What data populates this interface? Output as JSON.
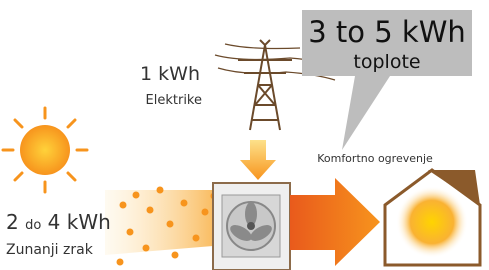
{
  "electricity": {
    "amount": "1 kWh",
    "name": "Elektrike"
  },
  "heat": {
    "amount": "3 to 5 kWh",
    "name": "toplote"
  },
  "comfort": "Komfortno ogrevenje",
  "air": {
    "from": "2",
    "connector": "do",
    "to": "4 kWh",
    "name": "Zunanji zrak"
  }
}
